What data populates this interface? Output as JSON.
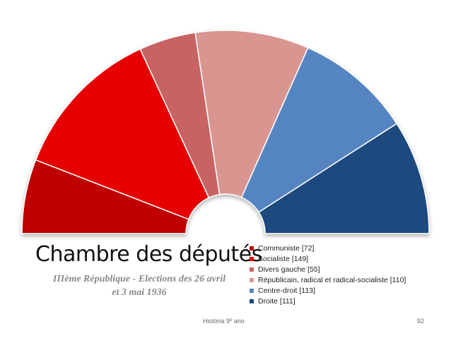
{
  "chart_data": {
    "type": "pie",
    "variant": "semicircle-parliament",
    "title": "Chambre des députés",
    "subtitle_line1": "IIIème République - Elections des 26 avril",
    "subtitle_line2": "et 3 mai 1936",
    "legend_position": "right",
    "series": [
      {
        "name": "Communiste [72]",
        "value": 72,
        "color": "#c00000"
      },
      {
        "name": "Socialiste [149]",
        "value": 149,
        "color": "#e60000"
      },
      {
        "name": "Divers gauche [55]",
        "value": 55,
        "color": "#c86464"
      },
      {
        "name": "Républicain, radical et radical-socialiste [110]",
        "value": 110,
        "color": "#d99590"
      },
      {
        "name": "Centre-droit [113]",
        "value": 113,
        "color": "#5585c1"
      },
      {
        "name": "Droite [111]",
        "value": 111,
        "color": "#1f4a7e"
      }
    ]
  },
  "footer": {
    "course": "História 9º ano",
    "page": "92"
  }
}
